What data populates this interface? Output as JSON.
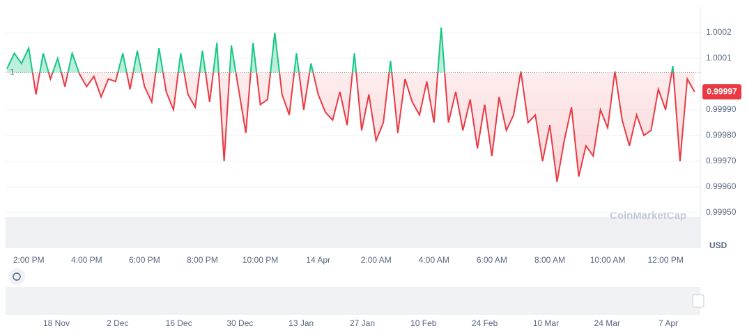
{
  "chart_data": {
    "type": "line",
    "x": [
      13.25,
      13.5,
      13.75,
      14,
      14.25,
      14.5,
      14.75,
      15,
      15.25,
      15.5,
      15.75,
      16,
      16.25,
      16.5,
      16.75,
      17,
      17.25,
      17.5,
      17.75,
      18,
      18.25,
      18.5,
      18.75,
      19,
      19.25,
      19.5,
      19.75,
      20,
      20.25,
      20.5,
      20.75,
      21,
      21.25,
      21.5,
      21.75,
      22,
      22.25,
      22.5,
      22.75,
      23,
      23.25,
      23.5,
      23.75,
      24,
      24.25,
      24.5,
      24.75,
      25,
      25.25,
      25.5,
      25.75,
      26,
      26.25,
      26.5,
      26.75,
      27,
      27.25,
      27.5,
      27.75,
      28,
      28.25,
      28.5,
      28.75,
      29,
      29.25,
      29.5,
      29.75,
      30,
      30.25,
      30.5,
      30.75,
      31,
      31.25,
      31.5,
      31.75,
      32,
      32.25,
      32.5,
      32.75,
      33,
      33.25,
      33.5,
      33.75,
      34,
      34.25,
      34.5,
      34.75,
      35,
      35.25,
      35.5,
      35.75,
      36,
      36.25,
      36.5,
      36.75,
      37
    ],
    "series": [
      {
        "name": "USD",
        "values": [
          1.00006,
          1.00012,
          1.00008,
          1.00014,
          0.99996,
          1.00012,
          1.00002,
          1.0001,
          0.99999,
          1.00012,
          1.00004,
          0.99999,
          1.00003,
          0.99995,
          1.00002,
          1.00001,
          1.00012,
          0.99998,
          1.00013,
          0.99999,
          0.99993,
          1.00014,
          0.99997,
          0.9999,
          1.00012,
          0.99996,
          0.99991,
          1.00013,
          0.99993,
          1.00016,
          0.9997,
          1.00015,
          0.99998,
          0.99981,
          1.00016,
          0.99992,
          0.99994,
          1.0002,
          0.99996,
          0.99988,
          1.00012,
          0.9999,
          1.00008,
          0.99996,
          0.99989,
          0.99986,
          0.99997,
          0.99984,
          1.00012,
          0.99982,
          0.99996,
          0.99978,
          0.99985,
          1.00009,
          0.99981,
          1.00002,
          0.99993,
          0.99988,
          1.00001,
          0.99985,
          1.00022,
          0.99985,
          0.99997,
          0.99982,
          0.99994,
          0.99975,
          0.99992,
          0.99972,
          0.99995,
          0.99982,
          0.99988,
          1.00005,
          0.99985,
          0.99988,
          0.9997,
          0.99984,
          0.99962,
          0.99978,
          0.99991,
          0.99964,
          0.99976,
          0.99972,
          0.9999,
          0.99983,
          1.00005,
          0.99986,
          0.99976,
          0.99988,
          0.9998,
          0.99982,
          0.99998,
          0.9999,
          1.00007,
          0.9997,
          1.00002,
          0.99997
        ]
      }
    ],
    "color_up": "#16c784",
    "color_down": "#ea3943",
    "baseline": {
      "value": 1.000045,
      "label": "1"
    },
    "xlim": [
      13.2,
      37.2
    ],
    "xticks": [
      {
        "value": 14,
        "label": "2:00 PM"
      },
      {
        "value": 16,
        "label": "4:00 PM"
      },
      {
        "value": 18,
        "label": "6:00 PM"
      },
      {
        "value": 20,
        "label": "8:00 PM"
      },
      {
        "value": 22,
        "label": "10:00 PM"
      },
      {
        "value": 24,
        "label": "14 Apr"
      },
      {
        "value": 26,
        "label": "2:00 AM"
      },
      {
        "value": 28,
        "label": "4:00 AM"
      },
      {
        "value": 30,
        "label": "6:00 AM"
      },
      {
        "value": 32,
        "label": "8:00 AM"
      },
      {
        "value": 34,
        "label": "10:00 AM"
      },
      {
        "value": 36,
        "label": "12:00 PM"
      }
    ],
    "ylim": [
      0.999362,
      1.0003
    ],
    "yticks": [
      1.0002,
      1.0001,
      {
        "value": 0.9999,
        "label": "0.99990"
      },
      {
        "value": 0.9998,
        "label": "0.99980"
      },
      {
        "value": 0.9997,
        "label": "0.99970"
      },
      {
        "value": 0.9996,
        "label": "0.99960"
      },
      {
        "value": 0.9995,
        "label": "0.99950"
      }
    ],
    "grid": true,
    "ylabel": "USD",
    "watermark": "CoinMarketCap",
    "navigator": [
      "18 Nov",
      "2 Dec",
      "16 Dec",
      "30 Dec",
      "13 Jan",
      "27 Jan",
      "10 Feb",
      "24 Feb",
      "10 Mar",
      "24 Mar",
      "7 Apr"
    ]
  }
}
